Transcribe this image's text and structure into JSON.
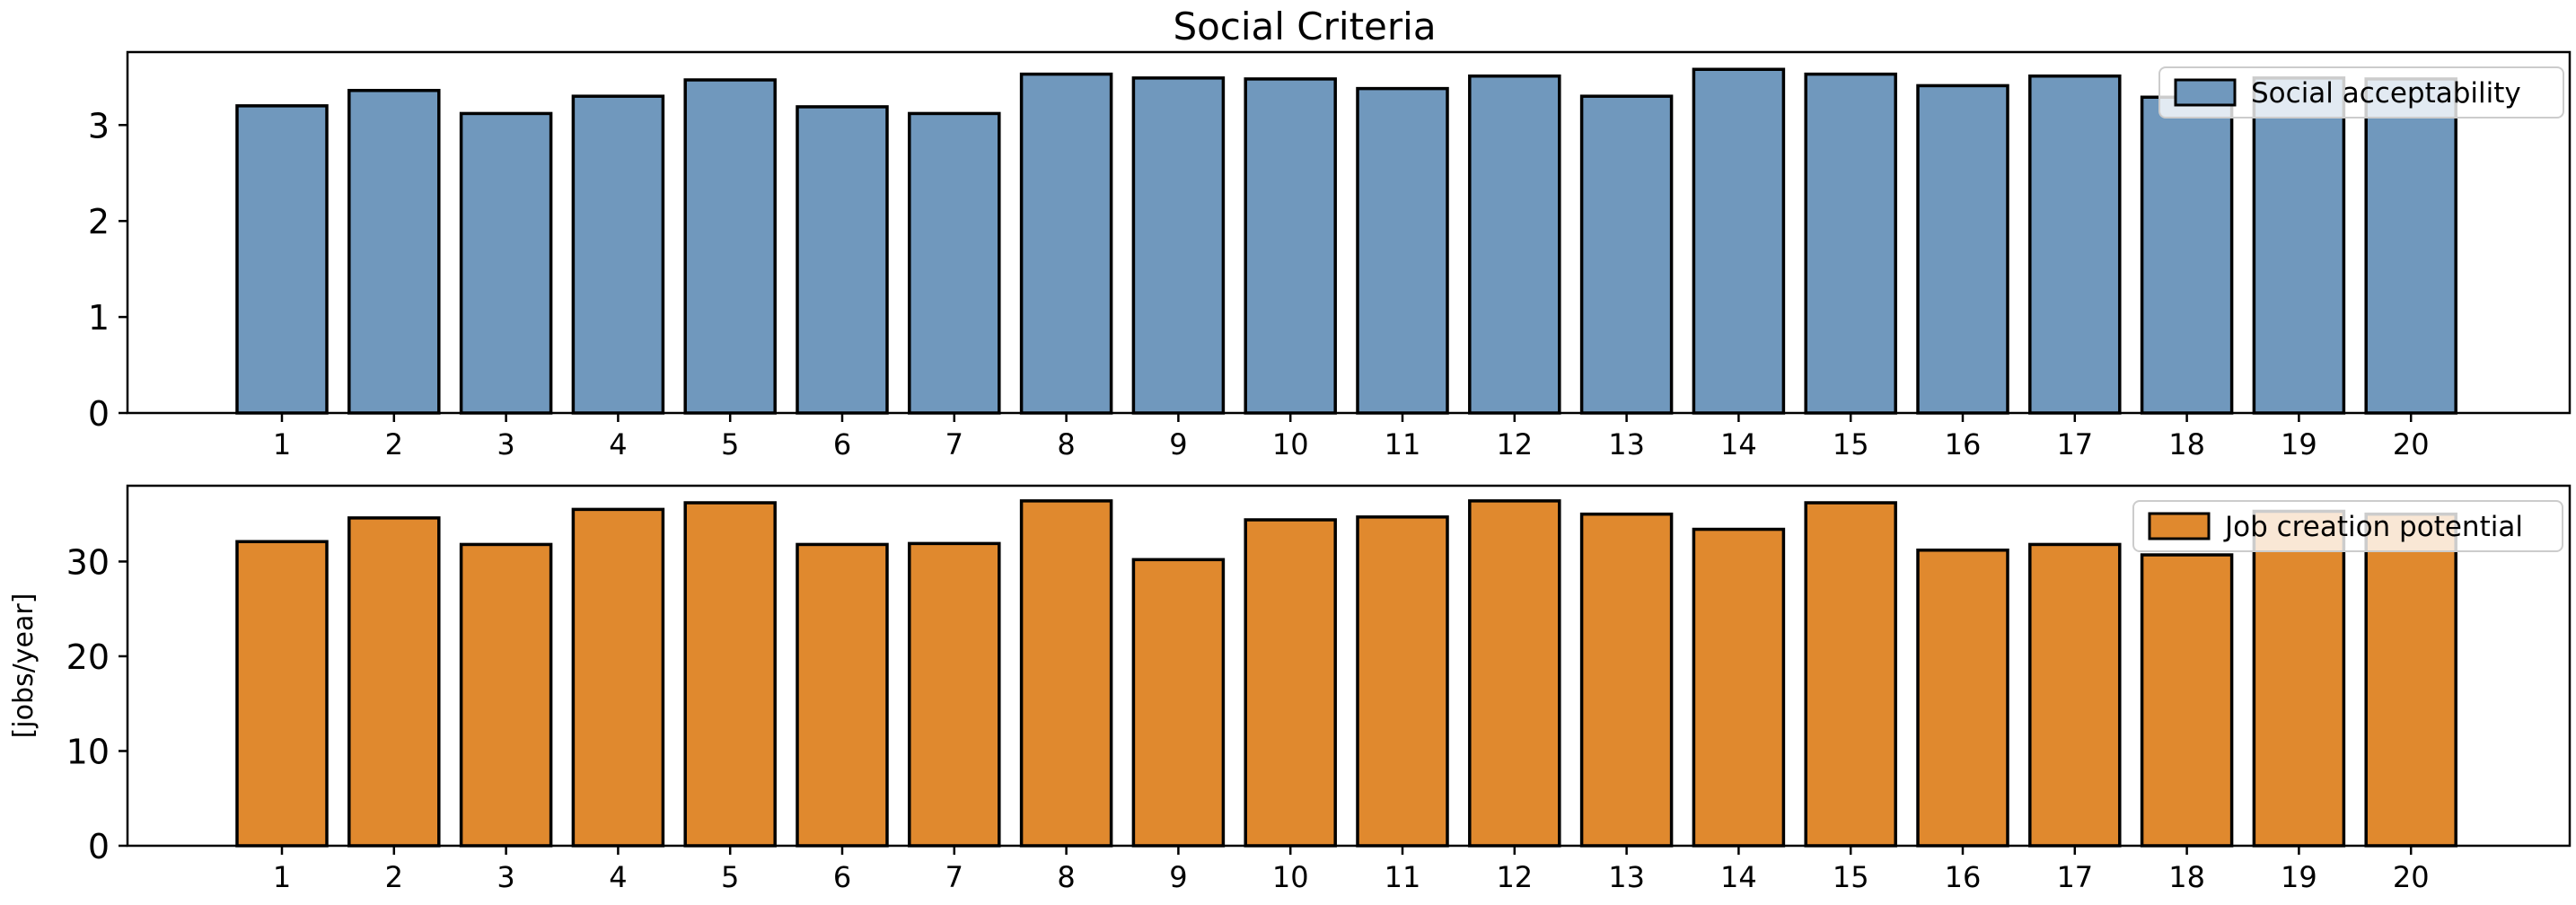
{
  "chart_title": "Social Criteria",
  "chart_data": [
    {
      "type": "bar",
      "title": "Social Criteria",
      "xlabel": "",
      "ylabel": "",
      "categories": [
        "1",
        "2",
        "3",
        "4",
        "5",
        "6",
        "7",
        "8",
        "9",
        "10",
        "11",
        "12",
        "13",
        "14",
        "15",
        "16",
        "17",
        "18",
        "19",
        "20"
      ],
      "series": [
        {
          "name": "Social acceptability",
          "color": "#7098bd",
          "values": [
            3.2,
            3.36,
            3.12,
            3.3,
            3.47,
            3.19,
            3.12,
            3.53,
            3.49,
            3.48,
            3.38,
            3.51,
            3.3,
            3.58,
            3.53,
            3.41,
            3.51,
            3.29,
            3.49,
            3.48
          ]
        }
      ],
      "ylim": [
        0,
        3.76
      ],
      "yticks": [
        0,
        1,
        2,
        3
      ],
      "legend": "top-right"
    },
    {
      "type": "bar",
      "title": "",
      "xlabel": "",
      "ylabel": "[jobs/year]",
      "categories": [
        "1",
        "2",
        "3",
        "4",
        "5",
        "6",
        "7",
        "8",
        "9",
        "10",
        "11",
        "12",
        "13",
        "14",
        "15",
        "16",
        "17",
        "18",
        "19",
        "20"
      ],
      "series": [
        {
          "name": "Job creation potential",
          "color": "#e0892e",
          "values": [
            32.1,
            34.6,
            31.8,
            35.5,
            36.2,
            31.8,
            31.9,
            36.4,
            30.2,
            34.4,
            34.7,
            36.4,
            35.0,
            33.4,
            36.2,
            31.2,
            31.8,
            30.7,
            35.3,
            35.0
          ]
        }
      ],
      "ylim": [
        0,
        38.0
      ],
      "yticks": [
        0,
        10,
        20,
        30
      ],
      "legend": "top-right"
    }
  ]
}
